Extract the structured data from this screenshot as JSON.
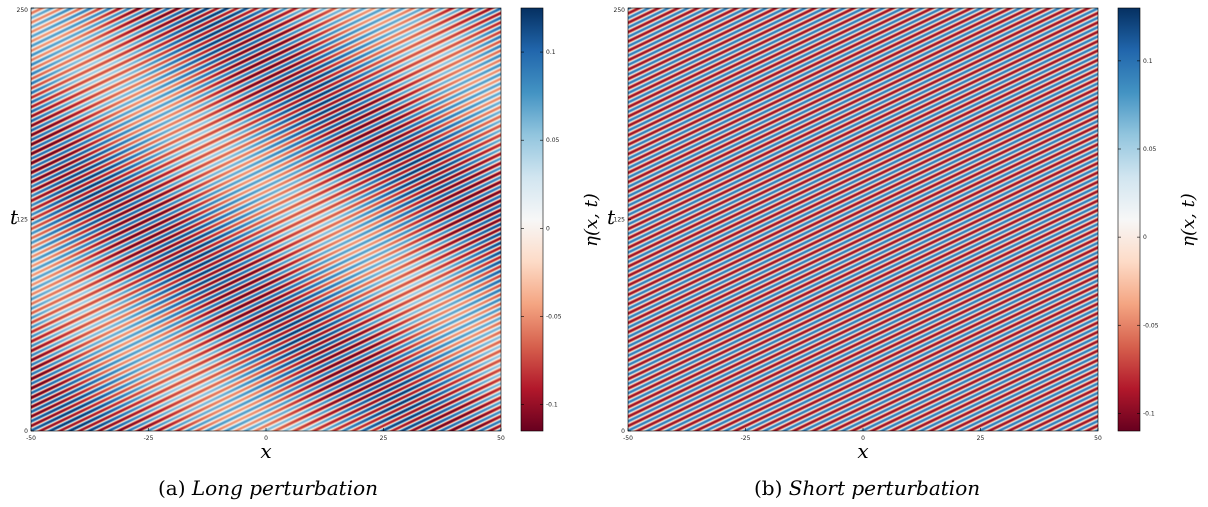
{
  "chart_data": [
    {
      "type": "heatmap",
      "panel_label": "(a)",
      "caption": "Long perturbation",
      "xlabel": "x",
      "ylabel": "t",
      "colorbar_label": "η(x, t)",
      "colormap": "RdBu",
      "xlim": [
        -50,
        50
      ],
      "ylim": [
        0,
        250
      ],
      "clim": [
        -0.115,
        0.125
      ],
      "x_ticks": [
        "-50",
        "-25",
        "0",
        "25",
        "50"
      ],
      "y_ticks": [
        "0",
        "125",
        "250"
      ],
      "colorbar_ticks": [
        "-0.1",
        "-0.05",
        "0",
        "0.05",
        "0.1"
      ],
      "colorbar_tick_values": [
        -0.1,
        -0.05,
        0,
        0.05,
        0.1
      ],
      "field": {
        "description_of_pattern": "diagonal travelling stripes with slow long-wave modulation",
        "stripe_count_across_x": 24,
        "stripe_count_along_t": 45,
        "amplitude": 0.09,
        "modulation_amplitude": 0.3,
        "modulation_wavelengths_x": 1.3,
        "modulation_wavelengths_t": 1.7
      }
    },
    {
      "type": "heatmap",
      "panel_label": "(b)",
      "caption": "Short perturbation",
      "xlabel": "x",
      "ylabel": "t",
      "colorbar_label": "η(x, t)",
      "colormap": "RdBu",
      "xlim": [
        -50,
        50
      ],
      "ylim": [
        0,
        250
      ],
      "clim": [
        -0.11,
        0.13
      ],
      "x_ticks": [
        "-50",
        "-25",
        "0",
        "25",
        "50"
      ],
      "y_ticks": [
        "0",
        "125",
        "250"
      ],
      "colorbar_ticks": [
        "-0.1",
        "-0.05",
        "0",
        "0.05",
        "0.1"
      ],
      "colorbar_tick_values": [
        -0.1,
        -0.05,
        0,
        0.05,
        0.1
      ],
      "field": {
        "description_of_pattern": "uniform diagonal travelling stripes",
        "stripe_count_across_x": 24,
        "stripe_count_along_t": 45,
        "amplitude": 0.1,
        "modulation_amplitude": 0.0,
        "modulation_wavelengths_x": 0,
        "modulation_wavelengths_t": 0
      }
    }
  ],
  "colors": {
    "colormap_stops": [
      "#67001f",
      "#b2182b",
      "#d6604d",
      "#f4a582",
      "#fddbc7",
      "#f7f7f7",
      "#d1e5f0",
      "#92c5de",
      "#4393c3",
      "#2166ac",
      "#053061"
    ]
  }
}
